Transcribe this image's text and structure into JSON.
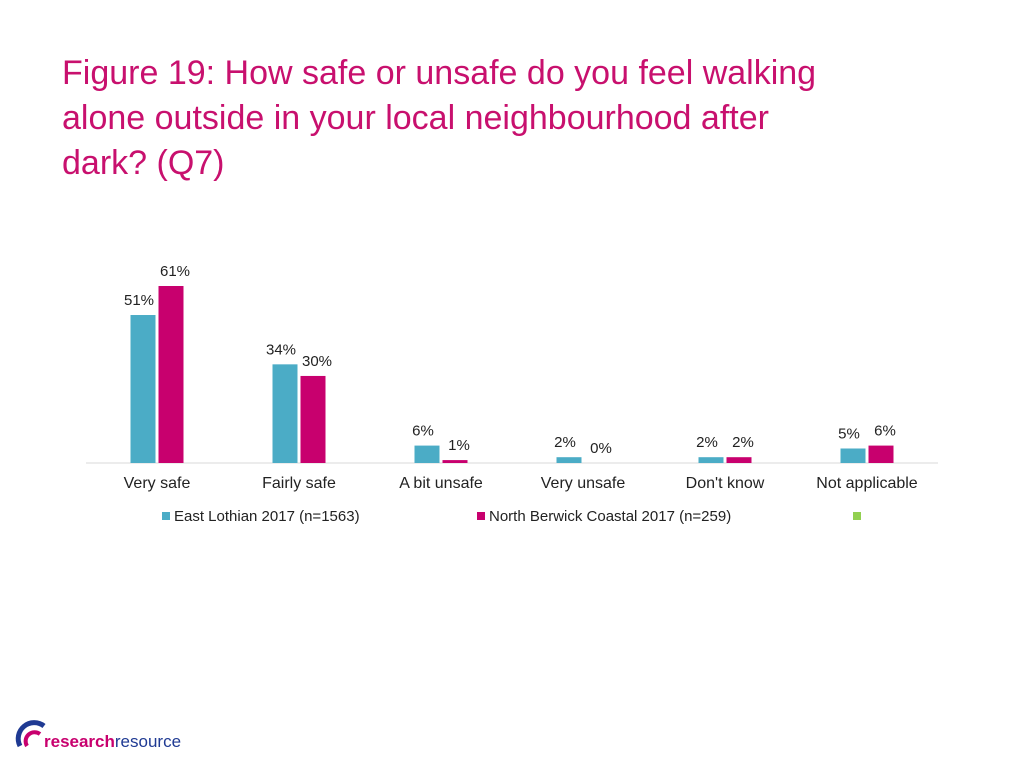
{
  "chart_data": {
    "type": "bar",
    "title": [
      "Figure 19: How safe or unsafe do you feel walking",
      "alone outside in your local neighbourhood after",
      "dark? (Q7)"
    ],
    "categories": [
      "Very safe",
      "Fairly safe",
      "A bit unsafe",
      "Very unsafe",
      "Don't know",
      "Not applicable"
    ],
    "series": [
      {
        "name": "East Lothian 2017 (n=1563)",
        "color": "#4bacc6",
        "values": [
          51,
          34,
          6,
          2,
          2,
          5
        ],
        "value_labels": [
          "51%",
          "34%",
          "6%",
          "2%",
          "2%",
          "5%"
        ]
      },
      {
        "name": "North Berwick Coastal 2017 (n=259)",
        "color": "#c8006e",
        "values": [
          61,
          30,
          1,
          0,
          2,
          6
        ],
        "value_labels": [
          "61%",
          "30%",
          "1%",
          "0%",
          "2%",
          "6%"
        ]
      }
    ],
    "legend": "bottom"
  },
  "logo": [
    "research",
    "resource"
  ]
}
